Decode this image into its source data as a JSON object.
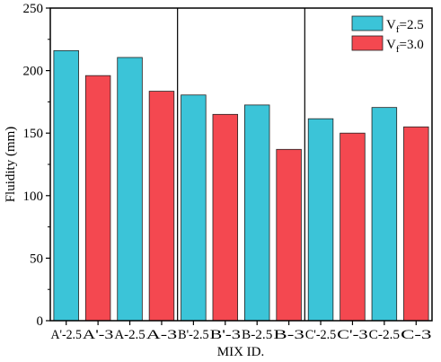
{
  "chart_data": {
    "type": "bar",
    "categories": [
      "A'-2.5",
      "A'-3",
      "A-2.5",
      "A-3",
      "B'-2.5",
      "B'-3",
      "B-2.5",
      "B-3",
      "C'-2.5",
      "C'-3",
      "C-2.5",
      "C-3"
    ],
    "values": [
      216,
      196,
      210.5,
      183.5,
      180.5,
      165,
      172.5,
      137,
      161.5,
      150,
      170.5,
      155
    ],
    "value_series": [
      "2.5",
      "3.0",
      "2.5",
      "3.0",
      "2.5",
      "3.0",
      "2.5",
      "3.0",
      "2.5",
      "3.0",
      "2.5",
      "3.0"
    ],
    "series": [
      {
        "key": "2.5",
        "label_main": "V",
        "label_sub": "f",
        "label_rest": "=2.5",
        "color": "#3bc4d8"
      },
      {
        "key": "3.0",
        "label_main": "V",
        "label_sub": "f",
        "label_rest": "=3.0",
        "color": "#f44850"
      }
    ],
    "xlabel": "MIX ID.",
    "ylabel": "Fluidity (mm)",
    "ylim": [
      0,
      250
    ],
    "yticks": [
      "0",
      "50",
      "100",
      "150",
      "200",
      "250"
    ],
    "group_dividers_after": [
      4,
      8
    ],
    "legend_position": "top-right",
    "grid": false
  }
}
